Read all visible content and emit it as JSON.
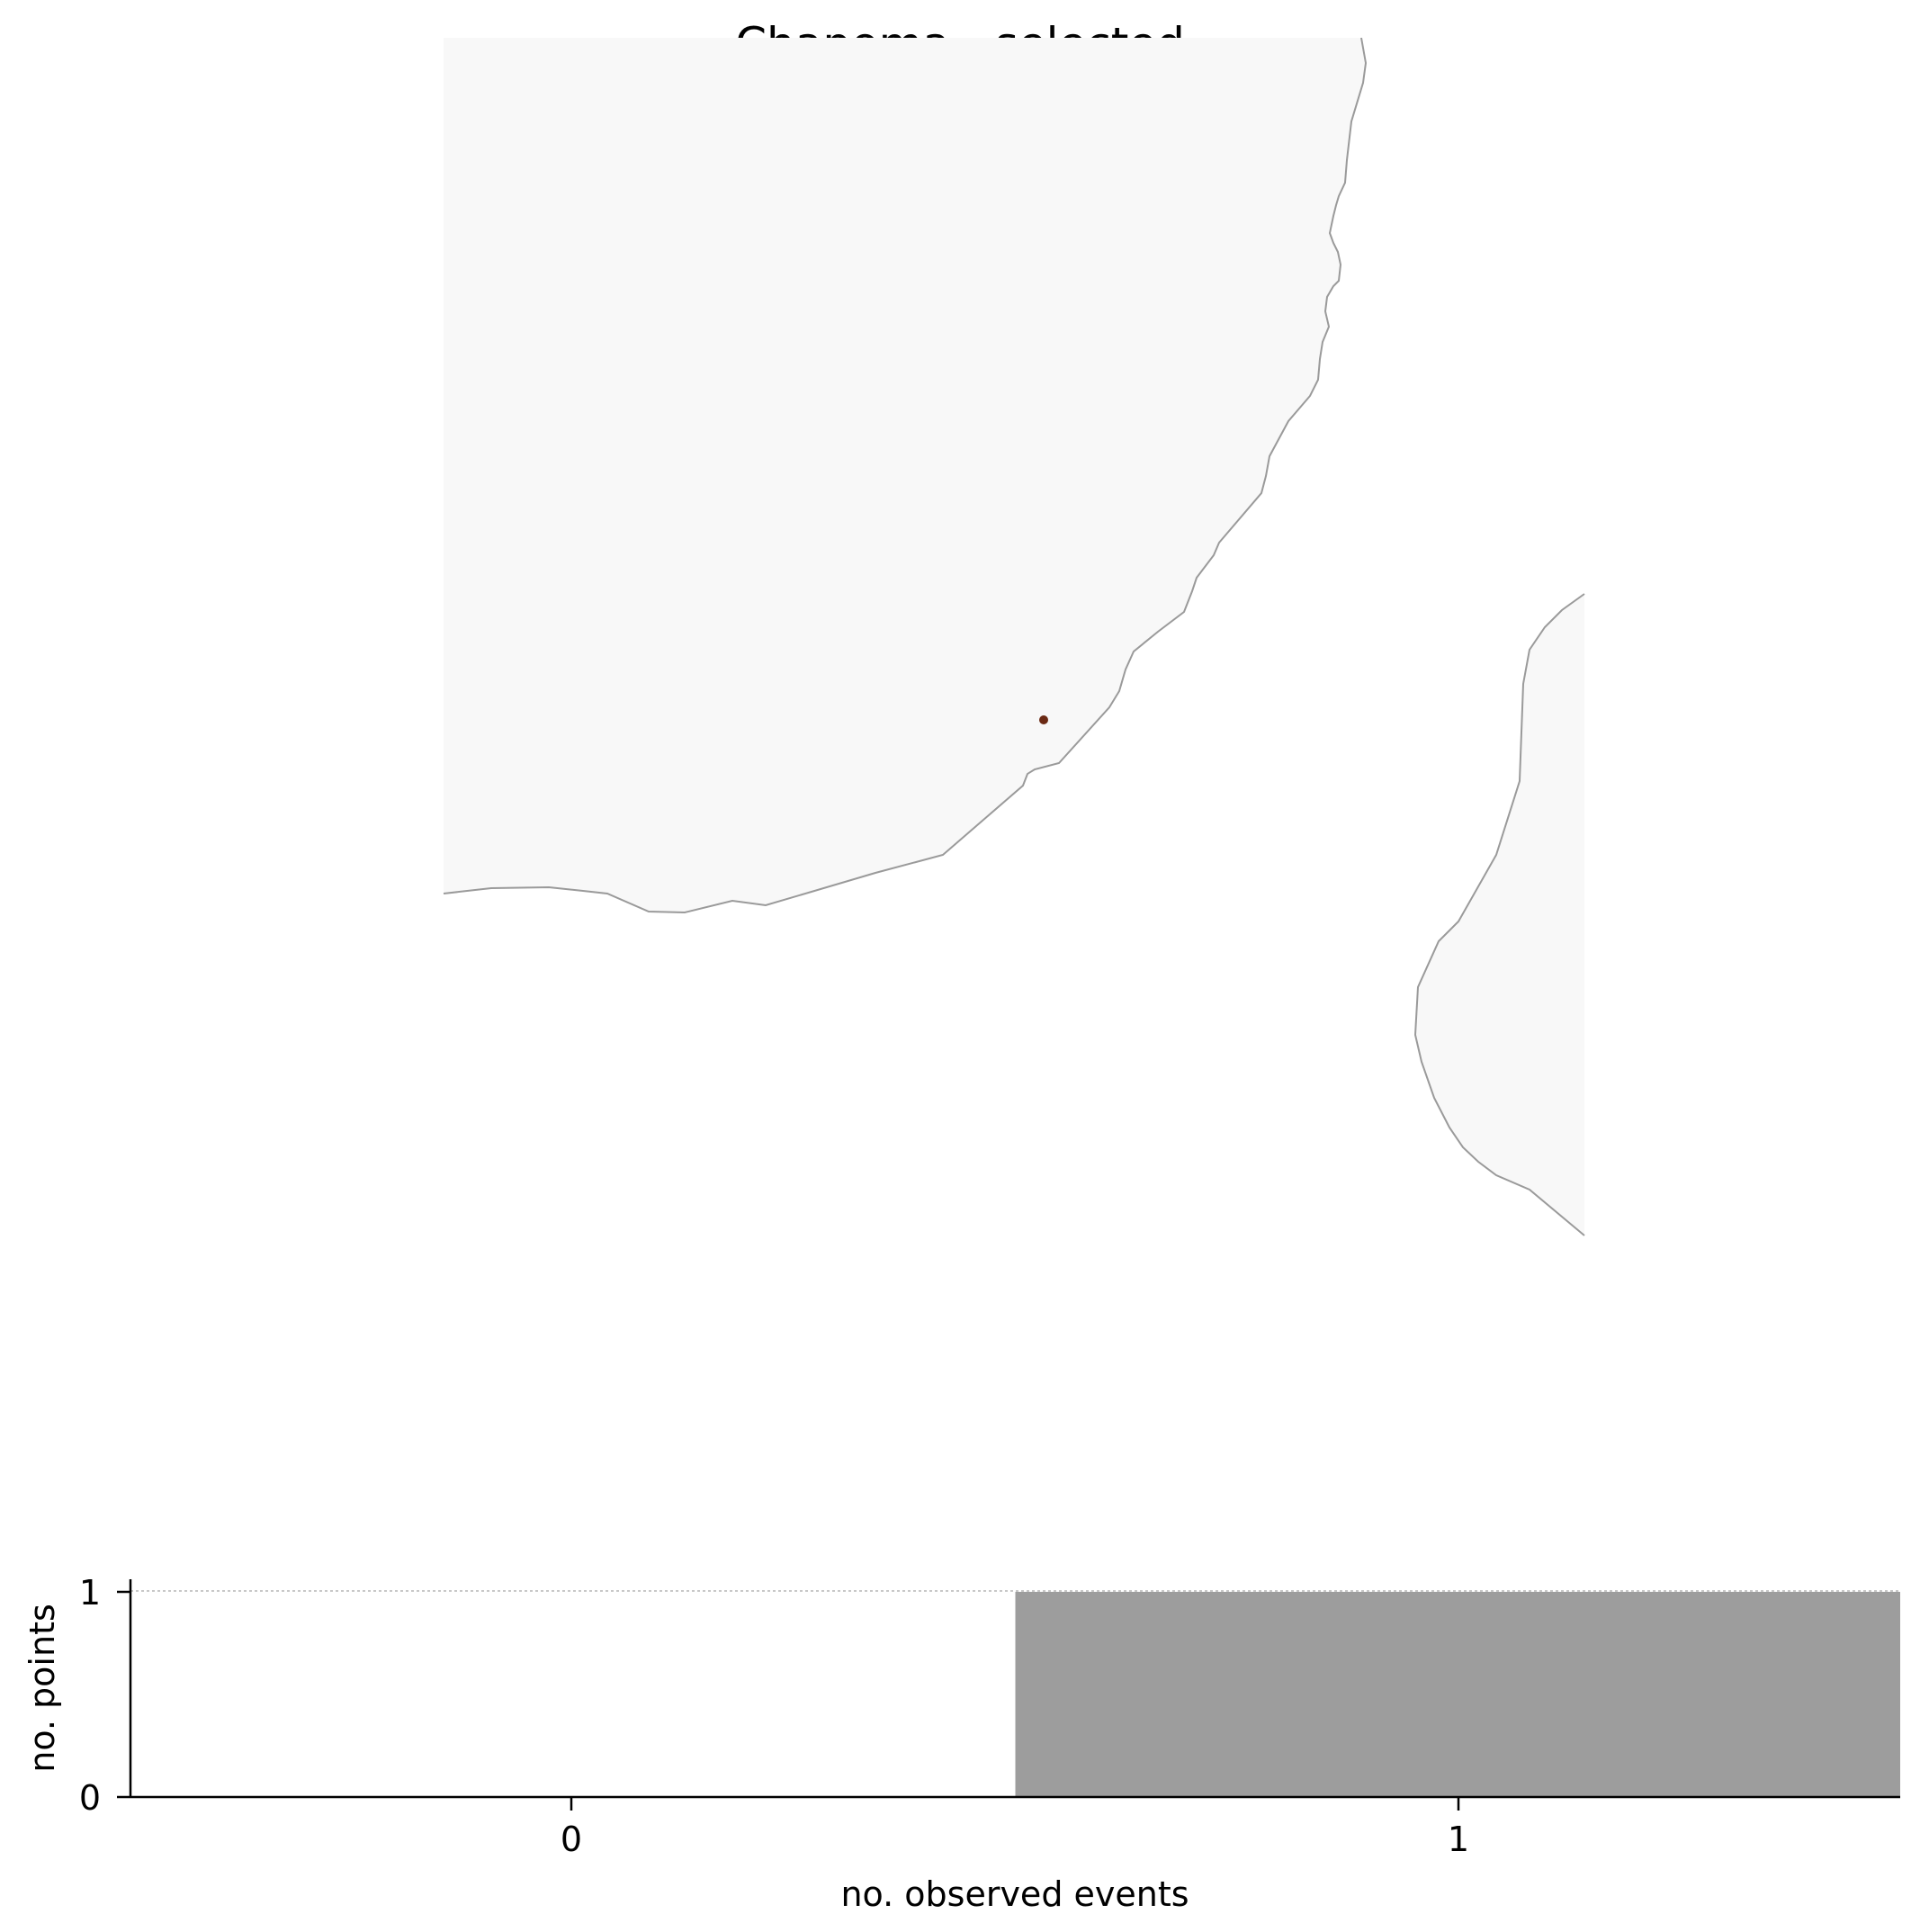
{
  "title": "Chapoma - selected",
  "colors": {
    "land": "#f8f8f8",
    "coast": "#9a9a9a",
    "marker": "#6b2a14",
    "bar": "#9d9d9d",
    "axis": "#000000",
    "gridline": "#c8c8c8"
  },
  "map": {
    "markers": [
      {
        "name": "Chapoma",
        "marker": "location-dot"
      }
    ]
  },
  "chart_data": {
    "type": "bar",
    "xlabel": "no. observed events",
    "ylabel": "no. points",
    "categories": [
      "0",
      "1"
    ],
    "values": [
      0,
      1
    ],
    "xticks": [
      "0",
      "1"
    ],
    "yticks": [
      "0",
      "1"
    ],
    "ylim": [
      0,
      1
    ],
    "gridline_at": 1
  }
}
